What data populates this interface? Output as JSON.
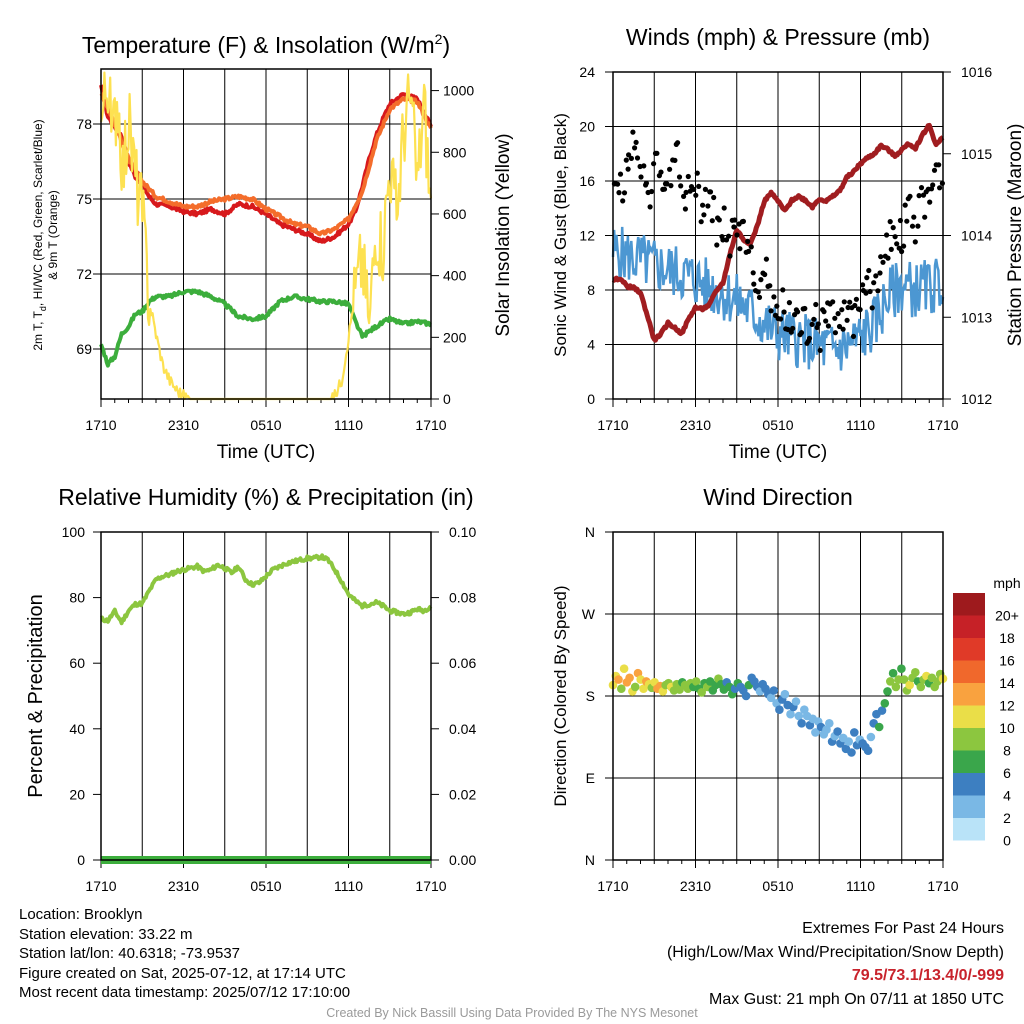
{
  "chart_data": [
    {
      "type": "line",
      "title": "Temperature (F) & Insolation (W/m²)",
      "xlabel": "Time (UTC)",
      "ylabel_left": "2m T, Td, HI/WC (Red, Green, Scarlet/Blue) & 9m T (Orange)",
      "ylabel_left_line1": "2m T, T",
      "ylabel_left_sub": "d",
      "ylabel_left_line1_rest": ", HI/WC (Red, Green, Scarlet/Blue)",
      "ylabel_left_line2": "& 9m T (Orange)",
      "ylabel_right": "Solar Insolation (Yellow)",
      "x_ticks": [
        "1710",
        "2310",
        "0510",
        "1110",
        "1710"
      ],
      "x_hours": [
        0,
        24
      ],
      "ylim_left": [
        67,
        80.2
      ],
      "yticks_left": [
        69,
        72,
        75,
        78
      ],
      "ylim_right": [
        0,
        1070
      ],
      "yticks_right": [
        0,
        200,
        400,
        600,
        800,
        1000
      ],
      "series": [
        {
          "name": "2m T",
          "color": "#d7191c",
          "axis": "left",
          "x": [
            0,
            0.5,
            1,
            1.5,
            2,
            2.5,
            3,
            3.5,
            4,
            5,
            6,
            7,
            8,
            9,
            10,
            11,
            12,
            13,
            14,
            15,
            16,
            17,
            18,
            18.5,
            19,
            19.5,
            20,
            20.5,
            21,
            22,
            23,
            24
          ],
          "y": [
            79.5,
            78.3,
            77.9,
            77.5,
            76.5,
            75.9,
            75.6,
            75.1,
            74.8,
            74.7,
            74.5,
            74.4,
            74.6,
            74.4,
            74.8,
            74.7,
            74.4,
            74.0,
            73.8,
            73.6,
            73.3,
            73.5,
            74.0,
            74.5,
            75.5,
            76.6,
            77.5,
            78.2,
            78.8,
            79.2,
            79.0,
            77.9
          ]
        },
        {
          "name": "9m T",
          "color": "#f46d2b",
          "axis": "left",
          "x": [
            0,
            1,
            2,
            3,
            4,
            5,
            6,
            7,
            8,
            9,
            10,
            11,
            12,
            13,
            14,
            15,
            16,
            17,
            18,
            19,
            20,
            21,
            22,
            23,
            24
          ],
          "y": [
            79.3,
            78.0,
            76.6,
            75.7,
            75.1,
            74.9,
            74.7,
            74.7,
            74.9,
            75.0,
            75.1,
            75.0,
            74.6,
            74.3,
            74.0,
            73.9,
            73.6,
            73.8,
            74.2,
            75.3,
            77.3,
            78.6,
            79.0,
            78.9,
            77.8
          ]
        },
        {
          "name": "Td",
          "color": "#3cae3c",
          "axis": "left",
          "x": [
            0,
            0.5,
            1,
            1.5,
            2,
            2.5,
            3,
            3.5,
            4,
            5,
            6,
            7,
            8,
            9,
            10,
            11,
            12,
            13,
            14,
            15,
            16,
            17,
            18,
            18.5,
            19,
            20,
            21,
            22,
            23,
            24
          ],
          "y": [
            69.2,
            68.4,
            68.7,
            69.6,
            69.9,
            70.4,
            70.5,
            70.9,
            71.1,
            71.1,
            71.3,
            71.3,
            71.1,
            70.8,
            70.3,
            70.2,
            70.3,
            70.9,
            71.1,
            71.0,
            70.9,
            70.9,
            70.8,
            70.1,
            69.5,
            69.9,
            70.2,
            70.0,
            70.1,
            70.0
          ]
        },
        {
          "name": "Solar",
          "color": "#fde151",
          "axis": "right",
          "x": [
            0,
            0.5,
            0.8,
            1.2,
            1.6,
            2,
            2.5,
            3,
            3.5,
            4,
            4.5,
            5,
            5.5,
            6,
            6.5,
            7,
            8,
            10,
            12,
            14,
            16,
            16.5,
            17,
            17.5,
            18,
            18.5,
            19,
            19.5,
            20,
            20.5,
            21,
            21.5,
            22,
            22.5,
            23,
            23.5,
            24
          ],
          "y": [
            890,
            1050,
            820,
            1000,
            740,
            900,
            720,
            600,
            320,
            210,
            110,
            60,
            30,
            10,
            0,
            0,
            0,
            0,
            0,
            0,
            0,
            0,
            10,
            60,
            200,
            350,
            460,
            240,
            560,
            500,
            760,
            600,
            870,
            980,
            700,
            960,
            600
          ]
        }
      ]
    },
    {
      "type": "line",
      "title": "Winds (mph) & Pressure (mb)",
      "xlabel": "Time (UTC)",
      "ylabel_left": "Sonic Wind & Gust (Blue, Black)",
      "ylabel_right": "Station Pressure (Maroon)",
      "x_ticks": [
        "1710",
        "2310",
        "0510",
        "1110",
        "1710"
      ],
      "x_hours": [
        0,
        24
      ],
      "ylim_left": [
        0,
        24
      ],
      "yticks_left": [
        0,
        4,
        8,
        12,
        16,
        20,
        24
      ],
      "ylim_right": [
        1012,
        1016
      ],
      "yticks_right": [
        1012,
        1013,
        1014,
        1015,
        1016
      ],
      "series": [
        {
          "name": "Sonic Wind",
          "color": "#4c97d2",
          "axis": "left",
          "x": [
            0,
            1,
            2,
            3,
            4,
            5,
            6,
            7,
            8,
            9,
            10,
            11,
            12,
            13,
            14,
            15,
            16,
            17,
            18,
            19,
            20,
            21,
            22,
            23,
            24
          ],
          "y": [
            10.8,
            10.5,
            10.2,
            9.8,
            9.5,
            9.2,
            8.8,
            8.2,
            7.8,
            7.2,
            6.5,
            5.5,
            4.8,
            4.5,
            4.2,
            3.9,
            3.6,
            3.9,
            4.5,
            5.5,
            7.5,
            8.4,
            8.0,
            8.2,
            8.6
          ]
        },
        {
          "name": "Gust",
          "color": "#000000",
          "axis": "left",
          "x": [
            0,
            0.5,
            1,
            1.5,
            2,
            2.5,
            3,
            3.5,
            4,
            4.5,
            5,
            5.5,
            6,
            6.5,
            7,
            7.5,
            8,
            8.5,
            9,
            9.5,
            10,
            10.5,
            11,
            11.5,
            12,
            12.5,
            13,
            13.5,
            14,
            14.5,
            15,
            15.5,
            16,
            16.5,
            17,
            17.5,
            18,
            18.5,
            19,
            19.5,
            20,
            20.5,
            21,
            21.5,
            22,
            22.5,
            23,
            23.5,
            24
          ],
          "y": [
            16.5,
            15.2,
            17.1,
            19.5,
            16.8,
            14.6,
            16.9,
            16.0,
            14.7,
            18.8,
            15.8,
            14.9,
            16.3,
            13.8,
            14.9,
            12.6,
            13.1,
            11.4,
            12.6,
            12.0,
            10.1,
            8.6,
            9.6,
            7.5,
            7.2,
            6.7,
            6.0,
            5.6,
            5.3,
            6.0,
            4.9,
            5.9,
            6.8,
            5.5,
            6.5,
            5.1,
            7.1,
            8.3,
            7.7,
            9.6,
            11.4,
            12.6,
            11.9,
            13.7,
            12.4,
            14.4,
            15.3,
            16.1,
            17.0
          ]
        },
        {
          "name": "Station Pressure",
          "color": "#a01d20",
          "axis": "right",
          "x": [
            0,
            0.5,
            1,
            1.5,
            2,
            2.5,
            3,
            3.5,
            4,
            4.5,
            5,
            5.5,
            6,
            6.5,
            7,
            7.5,
            8,
            8.5,
            9,
            9.5,
            10,
            10.5,
            11,
            11.5,
            12,
            12.5,
            13,
            13.5,
            14,
            14.5,
            15,
            15.5,
            16,
            16.5,
            17,
            17.5,
            18,
            18.5,
            19,
            19.5,
            20,
            20.5,
            21,
            21.5,
            22,
            22.5,
            23,
            23.5,
            24
          ],
          "y": [
            1013.45,
            1013.48,
            1013.38,
            1013.36,
            1013.3,
            1013.02,
            1012.72,
            1012.8,
            1012.93,
            1012.87,
            1012.8,
            1012.98,
            1013.12,
            1013.1,
            1013.15,
            1013.32,
            1013.42,
            1013.77,
            1014.07,
            1013.95,
            1013.9,
            1014.12,
            1014.42,
            1014.52,
            1014.42,
            1014.3,
            1014.43,
            1014.48,
            1014.43,
            1014.35,
            1014.45,
            1014.42,
            1014.48,
            1014.55,
            1014.71,
            1014.78,
            1014.88,
            1014.95,
            1015.0,
            1015.1,
            1015.05,
            1014.97,
            1015.05,
            1015.12,
            1015.07,
            1015.23,
            1015.35,
            1015.11,
            1015.2
          ]
        }
      ]
    },
    {
      "type": "line",
      "title": "Relative Humidity (%) & Precipitation (in)",
      "ylabel_left": "Percent & Precipitation",
      "x_ticks": [
        "1710",
        "2310",
        "0510",
        "1110",
        "1710"
      ],
      "x_hours": [
        0,
        24
      ],
      "ylim_left": [
        0,
        100
      ],
      "yticks_left": [
        0,
        20,
        40,
        60,
        80,
        100
      ],
      "ylim_right": [
        0,
        0.1
      ],
      "yticks_right": [
        "0.00",
        "0.02",
        "0.04",
        "0.06",
        "0.08",
        "0.10"
      ],
      "series": [
        {
          "name": "Relative Humidity",
          "color": "#8cc63f",
          "axis": "left",
          "x": [
            0,
            0.5,
            1,
            1.5,
            2,
            2.5,
            3,
            3.5,
            4,
            4.5,
            5,
            5.5,
            6,
            6.5,
            7,
            7.5,
            8,
            8.5,
            9,
            9.5,
            10,
            10.5,
            11,
            11.5,
            12,
            12.5,
            13,
            13.5,
            14,
            14.5,
            15,
            15.5,
            16,
            16.5,
            17,
            17.5,
            18,
            18.5,
            19,
            19.5,
            20,
            20.5,
            21,
            21.5,
            22,
            22.5,
            23,
            23.5,
            24
          ],
          "y": [
            73.5,
            73.0,
            75.8,
            72.5,
            76.0,
            78.0,
            78.2,
            82.0,
            85.5,
            86.5,
            87.0,
            88.0,
            88.5,
            89.0,
            89.5,
            88.0,
            88.5,
            90.0,
            89.0,
            87.5,
            89.5,
            85.5,
            84.0,
            84.5,
            86.5,
            88.5,
            89.5,
            90.5,
            91.0,
            91.5,
            92.0,
            92.0,
            92.5,
            91.5,
            88.5,
            85.0,
            81.0,
            79.0,
            77.5,
            78.0,
            78.5,
            77.5,
            76.0,
            75.5,
            75.0,
            75.5,
            76.5,
            76.0,
            77.5
          ]
        },
        {
          "name": "Precipitation",
          "color": "#3cae3c",
          "axis": "right",
          "x": [
            0,
            24
          ],
          "y": [
            0,
            0
          ]
        }
      ]
    },
    {
      "type": "scatter",
      "title": "Wind Direction",
      "ylabel_left": "Direction (Colored By Speed)",
      "x_ticks": [
        "1710",
        "2310",
        "0510",
        "1110",
        "1710"
      ],
      "x_hours": [
        0,
        24
      ],
      "yticks_left": [
        "N",
        "E",
        "S",
        "W",
        "N"
      ],
      "ylim_left": [
        0,
        360
      ],
      "colorbar_title": "mph",
      "colorbar_labels": [
        "20+",
        "18",
        "16",
        "14",
        "12",
        "10",
        "8",
        "6",
        "4",
        "2",
        "0"
      ],
      "colorbar_colors": [
        "#9e1a1d",
        "#c62127",
        "#e03a28",
        "#f0682c",
        "#f9a23f",
        "#eade48",
        "#8cc63f",
        "#3aa64b",
        "#3d7fc1",
        "#7ab8e5",
        "#b9e3f8"
      ],
      "direction_points_deg": [
        192,
        202,
        198,
        188,
        210,
        195,
        200,
        185,
        190,
        205,
        198,
        188,
        196,
        193,
        189,
        195,
        188,
        191,
        185,
        192,
        194,
        190,
        186,
        193,
        187,
        195,
        192,
        188,
        194,
        190,
        196,
        188,
        184,
        194,
        190,
        196,
        186,
        192,
        199,
        193,
        187,
        195,
        190,
        182,
        188,
        194,
        190,
        186,
        180,
        192,
        200,
        196,
        190,
        185,
        193,
        188,
        182,
        178,
        186,
        172,
        165,
        176,
        182,
        170,
        160,
        168,
        174,
        158,
        150,
        165,
        158,
        148,
        155,
        140,
        152,
        146,
        138,
        143,
        150,
        130,
        136,
        141,
        128,
        134,
        122,
        130,
        118,
        140,
        126,
        132,
        128,
        124,
        120,
        135,
        150,
        160,
        146,
        164,
        172,
        185,
        196,
        205,
        190,
        198,
        210,
        198,
        186,
        192,
        200,
        206,
        196,
        190,
        198,
        202,
        194,
        200,
        190,
        196,
        204,
        199
      ],
      "speed_points_mph": [
        10,
        11,
        12,
        9,
        10,
        13,
        12,
        11,
        9,
        12,
        10,
        11,
        12,
        10,
        9,
        11,
        12,
        13,
        10,
        8,
        9,
        10,
        8,
        9,
        8,
        7,
        8,
        9,
        8,
        7,
        8,
        6,
        8,
        7,
        8,
        7,
        6,
        7,
        8,
        6,
        7,
        5,
        6,
        7,
        5,
        6,
        5,
        4,
        5,
        6,
        5,
        4,
        5,
        3,
        4,
        5,
        4,
        3,
        4,
        3,
        4,
        5,
        3,
        4,
        3,
        4,
        2,
        3,
        4,
        2,
        3,
        4,
        3,
        2,
        3,
        4,
        3,
        2,
        3,
        4,
        3,
        5,
        4,
        3,
        4,
        3,
        4,
        5,
        4,
        3,
        4,
        5,
        4,
        3,
        4,
        5,
        6,
        5,
        6,
        7,
        8,
        7,
        9,
        8,
        7,
        9,
        8,
        10,
        9,
        8,
        7,
        9,
        8,
        10,
        7,
        8,
        9,
        8,
        9,
        10
      ]
    }
  ],
  "footer": {
    "location": "Location: Brooklyn",
    "elevation": "Station elevation: 33.22 m",
    "latlon": "Station lat/lon: 40.6318; -73.9537",
    "created": "Figure created on Sat, 2025-07-12, at 17:14 UTC",
    "recent": "Most recent data timestamp: 2025/07/12 17:10:00",
    "extremes_title": "Extremes For Past 24 Hours",
    "extremes_fields": "(High/Low/Max Wind/Precipitation/Snow Depth)",
    "extremes_values": "79.5/73.1/13.4/0/-999",
    "max_gust": "Max Gust: 21 mph On 07/11 at 1850 UTC",
    "credit": "Created By Nick Bassill Using Data Provided By The NYS Mesonet"
  }
}
